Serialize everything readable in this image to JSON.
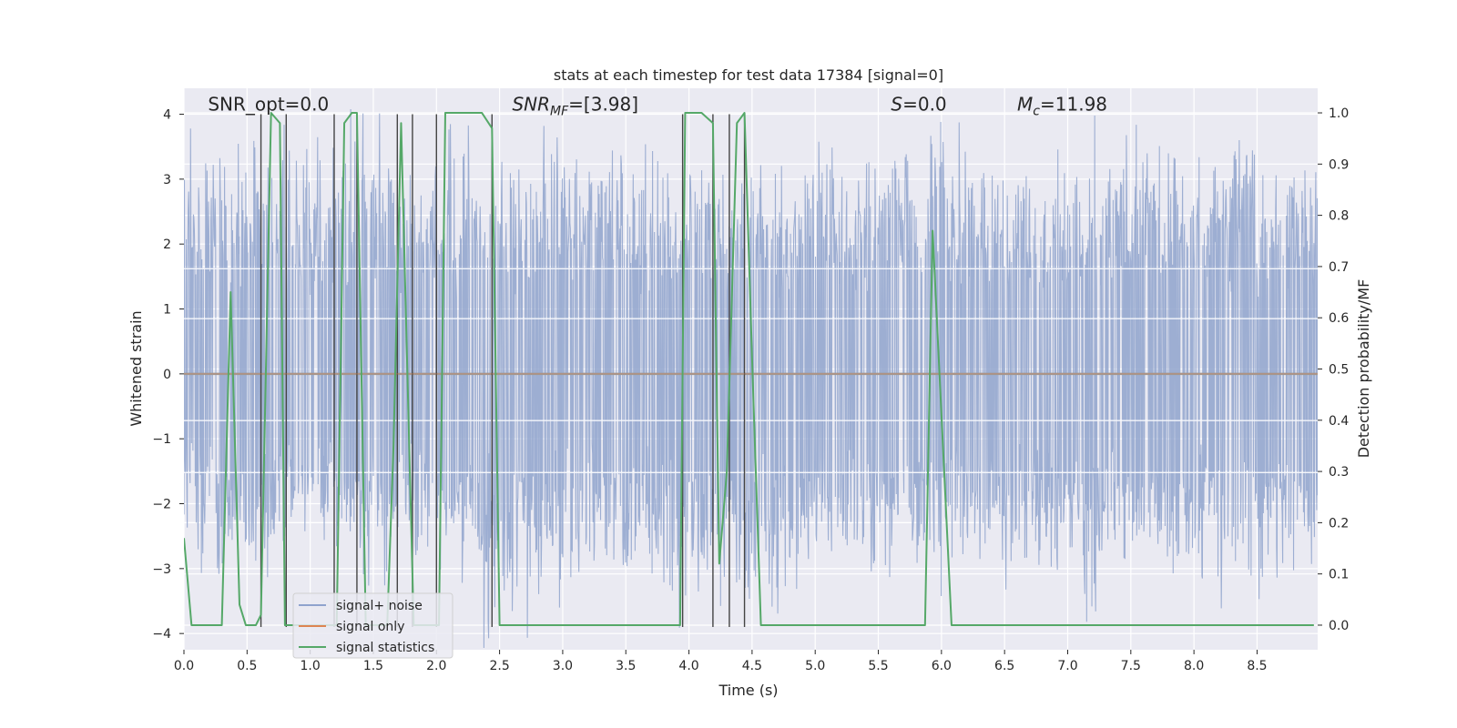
{
  "chart_data": {
    "type": "line",
    "title": "stats at each timestep for test data 17384 [signal=0]",
    "xlabel": "Time (s)",
    "ylabel": "Whitened strain",
    "y2label": "Detection probability/MF",
    "xlim": [
      0.0,
      8.98
    ],
    "ylim": [
      -4.25,
      4.4
    ],
    "y2lim": [
      -0.048,
      1.048
    ],
    "xticks": [
      0.0,
      0.5,
      1.0,
      1.5,
      2.0,
      2.5,
      3.0,
      3.5,
      4.0,
      4.5,
      5.0,
      5.5,
      6.0,
      6.5,
      7.0,
      7.5,
      8.0,
      8.5
    ],
    "xtick_labels": [
      "0.0",
      "0.5",
      "1.0",
      "1.5",
      "2.0",
      "2.5",
      "3.0",
      "3.5",
      "4.0",
      "4.5",
      "5.0",
      "5.5",
      "6.0",
      "6.5",
      "7.0",
      "7.5",
      "8.0",
      "8.5"
    ],
    "yticks": [
      -4,
      -3,
      -2,
      -1,
      0,
      1,
      2,
      3,
      4
    ],
    "ytick_labels": [
      "−4",
      "−3",
      "−2",
      "−1",
      "0",
      "1",
      "2",
      "3",
      "4"
    ],
    "y2ticks": [
      0.0,
      0.1,
      0.2,
      0.3,
      0.4,
      0.5,
      0.6,
      0.7,
      0.8,
      0.9,
      1.0
    ],
    "y2tick_labels": [
      "0.0",
      "0.1",
      "0.2",
      "0.3",
      "0.4",
      "0.5",
      "0.6",
      "0.7",
      "0.8",
      "0.9",
      "1.0"
    ],
    "grid": true,
    "legend_position": "bottom-left",
    "annotations": [
      {
        "text": "SNR_opt=0.0",
        "x": 0.19,
        "y": 4.1
      },
      {
        "text": "SNR_MF=[3.98]",
        "x": 2.6,
        "y": 4.1
      },
      {
        "text": "S=0.0",
        "x": 5.6,
        "y": 4.1
      },
      {
        "text": "M_c=11.98",
        "x": 6.6,
        "y": 4.1
      }
    ],
    "series": [
      {
        "name": "signal+ noise",
        "color": "#8fa3cd",
        "kind": "noise",
        "duration": 8.98,
        "envelope_upper": [
          3.2,
          3.5,
          3.4,
          3.3,
          3.6,
          3.4,
          3.3,
          3.0,
          3.3,
          3.5,
          3.3,
          3.2,
          3.1,
          3.0,
          3.3,
          3.2,
          3.6,
          3.4,
          3.0,
          3.1,
          3.2,
          3.4,
          3.3,
          3.4,
          3.2,
          3.3
        ],
        "envelope_lower": [
          -2.3,
          -3.2,
          -2.5,
          -2.6,
          -3.2,
          -2.6,
          -3.0,
          -3.6,
          -3.2,
          -2.8,
          -3.0,
          -3.3,
          -3.4,
          -3.2,
          -2.7,
          -3.0,
          -3.0,
          -2.6,
          -2.8,
          -2.8,
          -3.2,
          -2.9,
          -3.0,
          -3.1,
          -3.2,
          -2.8
        ]
      },
      {
        "name": "signal only",
        "color": "#dd8452",
        "kind": "flat",
        "x": [
          0.0,
          8.98
        ],
        "y": [
          0.0,
          0.0
        ]
      },
      {
        "name": "signal statistics",
        "color": "#55a868",
        "kind": "line",
        "axis": "right",
        "x": [
          0.0,
          0.06,
          0.16,
          0.24,
          0.3,
          0.37,
          0.44,
          0.49,
          0.57,
          0.61,
          0.69,
          0.76,
          0.8,
          0.84,
          0.91,
          0.99,
          1.07,
          1.14,
          1.21,
          1.27,
          1.33,
          1.37,
          1.44,
          1.51,
          1.61,
          1.66,
          1.72,
          1.82,
          1.9,
          1.96,
          2.02,
          2.07,
          2.15,
          2.25,
          2.36,
          2.44,
          2.5,
          2.6,
          2.7,
          2.8,
          2.9,
          3.0,
          3.2,
          3.4,
          3.6,
          3.8,
          3.93,
          3.97,
          4.1,
          4.19,
          4.24,
          4.3,
          4.38,
          4.44,
          4.5,
          4.57,
          4.7,
          4.9,
          5.1,
          5.3,
          5.5,
          5.7,
          5.87,
          5.93,
          6.08,
          6.5,
          7.0,
          7.5,
          8.0,
          8.5,
          8.95
        ],
        "y": [
          0.17,
          0.0,
          0.0,
          0.0,
          0.0,
          0.65,
          0.04,
          0.0,
          0.0,
          0.02,
          1.0,
          0.98,
          0.0,
          0.0,
          0.0,
          0.0,
          0.0,
          0.0,
          0.0,
          0.98,
          1.0,
          1.0,
          0.0,
          0.0,
          0.0,
          0.35,
          0.98,
          0.0,
          0.0,
          0.0,
          0.0,
          1.0,
          1.0,
          1.0,
          1.0,
          0.97,
          0.0,
          0.0,
          0.0,
          0.0,
          0.0,
          0.0,
          0.0,
          0.0,
          0.0,
          0.0,
          0.0,
          1.0,
          1.0,
          0.98,
          0.12,
          0.3,
          0.98,
          1.0,
          0.52,
          0.0,
          0.0,
          0.0,
          0.0,
          0.0,
          0.0,
          0.0,
          0.0,
          0.77,
          0.0,
          0.0,
          0.0,
          0.0,
          0.0,
          0.0,
          0.0
        ]
      }
    ],
    "vlines": [
      0.61,
      0.81,
      1.19,
      1.37,
      1.69,
      1.81,
      2.0,
      2.44,
      3.95,
      4.19,
      4.32,
      4.44
    ],
    "vline_color": "#444444",
    "hlines_light": [
      1.62,
      0.85,
      -0.72,
      -1.52
    ],
    "hline_zero_color": "#9a9a9a"
  }
}
